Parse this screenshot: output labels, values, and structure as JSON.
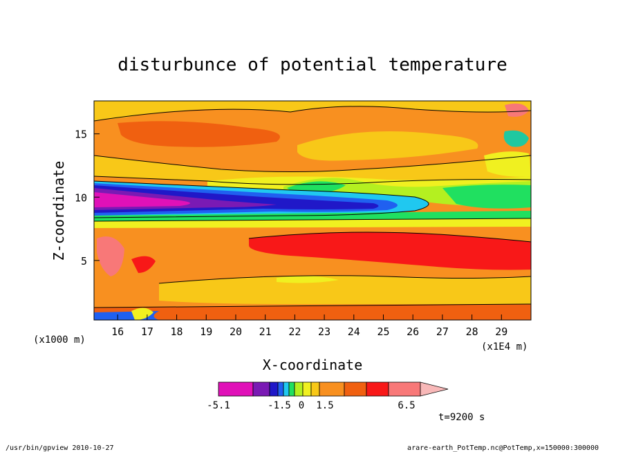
{
  "chart_data": {
    "type": "heatmap",
    "title": "disturbunce of potential temperature",
    "xlabel": "X-coordinate",
    "ylabel": "Z-coordinate",
    "x_unit_left": "(x1000 m)",
    "x_unit_right": "(x1E4 m)",
    "x_ticks": [
      "16",
      "17",
      "18",
      "19",
      "20",
      "21",
      "22",
      "23",
      "24",
      "25",
      "26",
      "27",
      "28",
      "29"
    ],
    "y_ticks": [
      "5",
      "10",
      "15"
    ],
    "xlim": [
      15.2,
      30.0
    ],
    "ylim": [
      0.3,
      17.6
    ],
    "colorbar": {
      "tick_labels": [
        "-5.1",
        "-1.5",
        "0",
        "1.5",
        "6.5"
      ],
      "colors": [
        "#e011b8",
        "#7a1ab4",
        "#2018c8",
        "#2060f0",
        "#20c8f0",
        "#20e060",
        "#b4f020",
        "#f0f020",
        "#f8c818",
        "#f89020",
        "#f06010",
        "#f81818",
        "#f87878",
        "#f8b8b8"
      ]
    },
    "time_label": "t=9200 s"
  },
  "footer": {
    "left": "/usr/bin/gpview   2010-10-27",
    "right": "arare-earth_PotTemp.nc@PotTemp,x=150000:300000"
  }
}
